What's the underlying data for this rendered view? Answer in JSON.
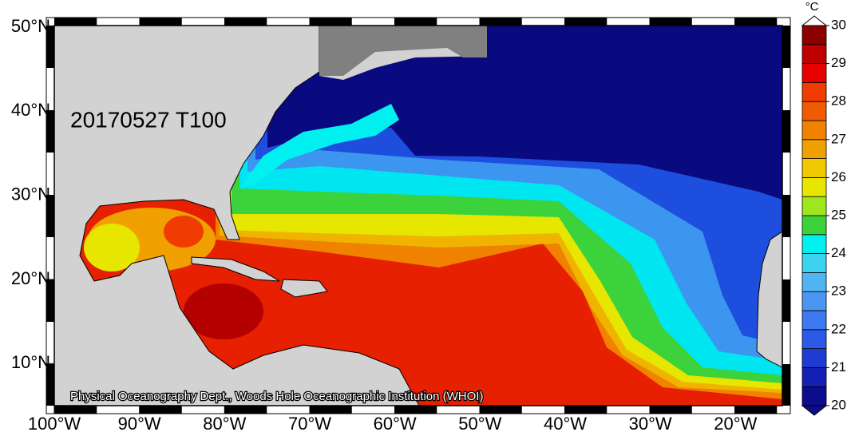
{
  "map": {
    "title": "20170527 T100",
    "credit": "Physical Oceanography Dept., Woods Hole Oceanographic Institution (WHOI)",
    "xlim": [
      -100,
      -14.5
    ],
    "ylim": [
      5,
      50.2
    ],
    "xticks": [
      {
        "value": -100,
        "label": "100°W"
      },
      {
        "value": -90,
        "label": "90°W"
      },
      {
        "value": -80,
        "label": "80°W"
      },
      {
        "value": -70,
        "label": "70°W"
      },
      {
        "value": -60,
        "label": "60°W"
      },
      {
        "value": -50,
        "label": "50°W"
      },
      {
        "value": -40,
        "label": "40°W"
      },
      {
        "value": -30,
        "label": "30°W"
      },
      {
        "value": -20,
        "label": "20°W"
      }
    ],
    "yticks": [
      {
        "value": 10,
        "label": "10°N"
      },
      {
        "value": 20,
        "label": "20°N"
      },
      {
        "value": 30,
        "label": "30°N"
      },
      {
        "value": 40,
        "label": "40°N"
      },
      {
        "value": 50,
        "label": "50°N"
      }
    ],
    "colorbar": {
      "unit": "°C",
      "ticks": [
        20,
        21,
        22,
        23,
        24,
        25,
        26,
        27,
        28,
        29,
        30
      ],
      "colors": [
        "#0c0c8c",
        "#1420b4",
        "#1e3cd2",
        "#2a5ae6",
        "#3c78f0",
        "#4b96f0",
        "#50b4f0",
        "#3cd2f0",
        "#00f0f0",
        "#3cd23c",
        "#a0e61e",
        "#e6e600",
        "#f0c800",
        "#f0a000",
        "#f08200",
        "#f05a00",
        "#f03c00",
        "#e60000",
        "#c00000",
        "#8c0000"
      ]
    }
  }
}
